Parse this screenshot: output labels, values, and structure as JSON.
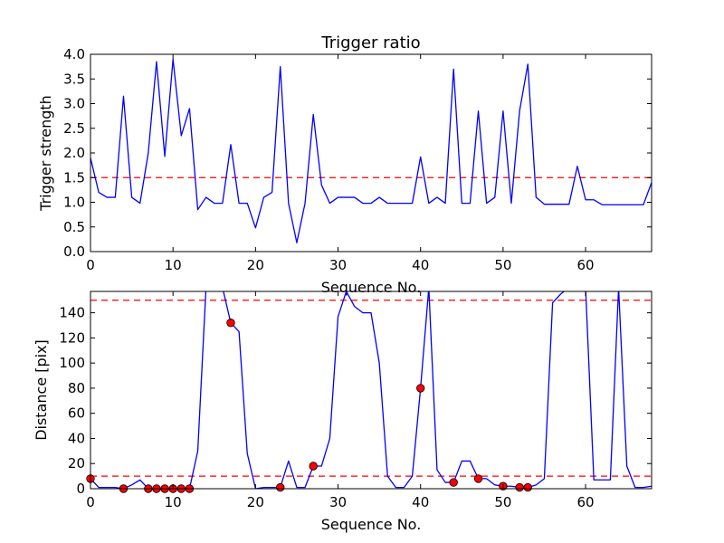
{
  "colors": {
    "line": "#0000ff",
    "threshold": "#ff0000",
    "marker": "#ff0000",
    "marker_edge": "#000000"
  },
  "chart_data": [
    {
      "type": "line",
      "title": "Trigger ratio",
      "xlabel": "Sequence No.",
      "ylabel": "Trigger strength",
      "xlim": [
        0,
        68
      ],
      "ylim": [
        0,
        4.0
      ],
      "xticks": [
        0,
        10,
        20,
        30,
        40,
        50,
        60
      ],
      "xtick_labels": [
        "0",
        "10",
        "20",
        "30",
        "40",
        "50",
        "60"
      ],
      "yticks": [
        0,
        0.5,
        1.0,
        1.5,
        2.0,
        2.5,
        3.0,
        3.5,
        4.0
      ],
      "ytick_labels": [
        "0.0",
        "0.5",
        "1.0",
        "1.5",
        "2.0",
        "2.5",
        "3.0",
        "3.5",
        "4.0"
      ],
      "grid": false,
      "series": [
        {
          "x": [
            0,
            1,
            2,
            3,
            4,
            5,
            6,
            7,
            8,
            9,
            10,
            11,
            12,
            13,
            14,
            15,
            16,
            17,
            18,
            19,
            20,
            21,
            22,
            23,
            24,
            25,
            26,
            27,
            28,
            29,
            30,
            31,
            32,
            33,
            34,
            35,
            36,
            37,
            38,
            39,
            40,
            41,
            42,
            43,
            44,
            45,
            46,
            47,
            48,
            49,
            50,
            51,
            52,
            53,
            54,
            55,
            56,
            57,
            58,
            59,
            60,
            61,
            62,
            63,
            64,
            65,
            66,
            67,
            68
          ],
          "y": [
            1.9,
            1.2,
            1.1,
            1.1,
            3.15,
            1.1,
            0.98,
            2.0,
            3.85,
            1.93,
            3.9,
            2.35,
            2.9,
            0.85,
            1.1,
            0.98,
            0.98,
            2.17,
            0.98,
            0.98,
            0.48,
            1.1,
            1.2,
            3.75,
            0.98,
            0.18,
            0.98,
            2.78,
            1.35,
            0.98,
            1.1,
            1.1,
            1.1,
            0.98,
            0.98,
            1.1,
            0.98,
            0.98,
            0.98,
            0.98,
            1.92,
            0.98,
            1.1,
            0.98,
            3.7,
            0.98,
            0.98,
            2.85,
            0.98,
            1.1,
            2.85,
            0.98,
            2.85,
            3.8,
            1.1,
            0.96,
            0.96,
            0.96,
            0.96,
            1.73,
            1.05,
            1.05,
            0.95,
            0.95,
            0.95,
            0.95,
            0.95,
            0.95,
            1.4
          ]
        }
      ],
      "hlines": [
        1.5
      ]
    },
    {
      "type": "line",
      "title": "",
      "xlabel": "Sequence No.",
      "ylabel": "Distance [pix]",
      "xlim": [
        0,
        68
      ],
      "ylim": [
        0,
        157
      ],
      "xticks": [
        0,
        10,
        20,
        30,
        40,
        50,
        60
      ],
      "xtick_labels": [
        "0",
        "10",
        "20",
        "30",
        "40",
        "50",
        "60"
      ],
      "yticks": [
        0,
        20,
        40,
        60,
        80,
        100,
        120,
        140
      ],
      "ytick_labels": [
        "0",
        "20",
        "40",
        "60",
        "80",
        "100",
        "120",
        "140"
      ],
      "grid": false,
      "series": [
        {
          "x": [
            0,
            1,
            2,
            3,
            4,
            5,
            6,
            7,
            8,
            9,
            10,
            11,
            12,
            13,
            14,
            15,
            16,
            17,
            18,
            19,
            20,
            21,
            22,
            23,
            24,
            25,
            26,
            27,
            28,
            29,
            30,
            31,
            32,
            33,
            34,
            35,
            36,
            37,
            38,
            39,
            40,
            41,
            42,
            43,
            44,
            45,
            46,
            47,
            48,
            49,
            50,
            51,
            52,
            53,
            54,
            55,
            56,
            57,
            58,
            59,
            60,
            61,
            62,
            63,
            64,
            65,
            66,
            67,
            68
          ],
          "y": [
            8,
            1,
            1,
            1,
            0,
            3,
            7,
            0,
            0,
            0,
            0,
            0,
            0,
            30,
            160,
            160,
            160,
            132,
            125,
            28,
            0,
            1,
            1,
            1,
            22,
            1,
            1,
            18,
            18,
            40,
            137,
            157,
            145,
            140,
            140,
            100,
            10,
            1,
            1,
            10,
            80,
            160,
            15,
            5,
            5,
            22,
            22,
            8,
            8,
            3,
            2,
            2,
            1,
            1,
            3,
            8,
            148,
            155,
            160,
            160,
            160,
            7,
            7,
            7,
            160,
            18,
            1,
            1,
            2
          ]
        }
      ],
      "markers": {
        "x": [
          0,
          4,
          7,
          8,
          9,
          10,
          11,
          12,
          17,
          23,
          27,
          40,
          44,
          47,
          50,
          52,
          53
        ],
        "y": [
          8,
          0,
          0,
          0,
          0,
          0,
          0,
          0,
          132,
          1,
          18,
          80,
          5,
          8,
          2,
          1,
          1
        ]
      },
      "hlines": [
        10,
        150
      ]
    }
  ]
}
